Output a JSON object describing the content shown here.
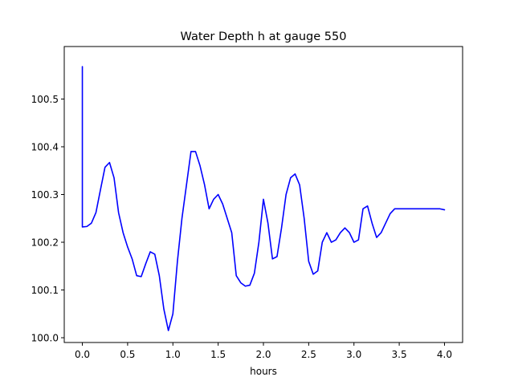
{
  "chart_data": {
    "type": "line",
    "title": "Water Depth h at gauge 550",
    "xlabel": "hours",
    "ylabel": "",
    "xlim": [
      -0.2,
      4.2
    ],
    "ylim": [
      99.99,
      100.61
    ],
    "xticks": [
      0.0,
      0.5,
      1.0,
      1.5,
      2.0,
      2.5,
      3.0,
      3.5,
      4.0
    ],
    "xtick_labels": [
      "0.0",
      "0.5",
      "1.0",
      "1.5",
      "2.0",
      "2.5",
      "3.0",
      "3.5",
      "4.0"
    ],
    "yticks": [
      100.0,
      100.1,
      100.2,
      100.3,
      100.4,
      100.5
    ],
    "ytick_labels": [
      "100.0",
      "100.1",
      "100.2",
      "100.3",
      "100.4",
      "100.5"
    ],
    "grid": false,
    "series": [
      {
        "color": "#0000ff",
        "x": [
          0.0,
          0.0,
          0.0,
          0.05,
          0.1,
          0.15,
          0.2,
          0.25,
          0.3,
          0.35,
          0.4,
          0.45,
          0.5,
          0.55,
          0.6,
          0.65,
          0.7,
          0.75,
          0.8,
          0.85,
          0.9,
          0.95,
          1.0,
          1.05,
          1.1,
          1.15,
          1.2,
          1.25,
          1.3,
          1.35,
          1.4,
          1.45,
          1.5,
          1.55,
          1.6,
          1.65,
          1.7,
          1.75,
          1.8,
          1.85,
          1.9,
          1.95,
          2.0,
          2.05,
          2.1,
          2.15,
          2.2,
          2.25,
          2.3,
          2.35,
          2.4,
          2.45,
          2.5,
          2.55,
          2.6,
          2.65,
          2.7,
          2.75,
          2.8,
          2.85,
          2.9,
          2.95,
          3.0,
          3.05,
          3.1,
          3.15,
          3.2,
          3.25,
          3.3,
          3.35,
          3.4,
          3.45,
          3.5,
          3.55,
          3.6,
          3.65,
          3.7,
          3.75,
          3.8,
          3.85,
          3.9,
          3.95,
          4.0
        ],
        "y": [
          100.568,
          100.232,
          100.232,
          100.233,
          100.24,
          100.262,
          100.31,
          100.357,
          100.367,
          100.335,
          100.262,
          100.22,
          100.19,
          100.165,
          100.13,
          100.128,
          100.155,
          100.18,
          100.175,
          100.13,
          100.06,
          100.015,
          100.05,
          100.16,
          100.25,
          100.32,
          100.39,
          100.39,
          100.36,
          100.32,
          100.27,
          100.29,
          100.3,
          100.28,
          100.25,
          100.22,
          100.13,
          100.115,
          100.108,
          100.11,
          100.135,
          100.2,
          100.29,
          100.24,
          100.165,
          100.17,
          100.23,
          100.3,
          100.335,
          100.343,
          100.32,
          100.25,
          100.16,
          100.133,
          100.14,
          100.2,
          100.22,
          100.2,
          100.205,
          100.22,
          100.23,
          100.22,
          100.2,
          100.205,
          100.27,
          100.276,
          100.24,
          100.21,
          100.22,
          100.24,
          100.26,
          100.27,
          100.27,
          100.27,
          100.27,
          100.27,
          100.27,
          100.27,
          100.27,
          100.27,
          100.27,
          100.27,
          100.268
        ]
      }
    ]
  }
}
